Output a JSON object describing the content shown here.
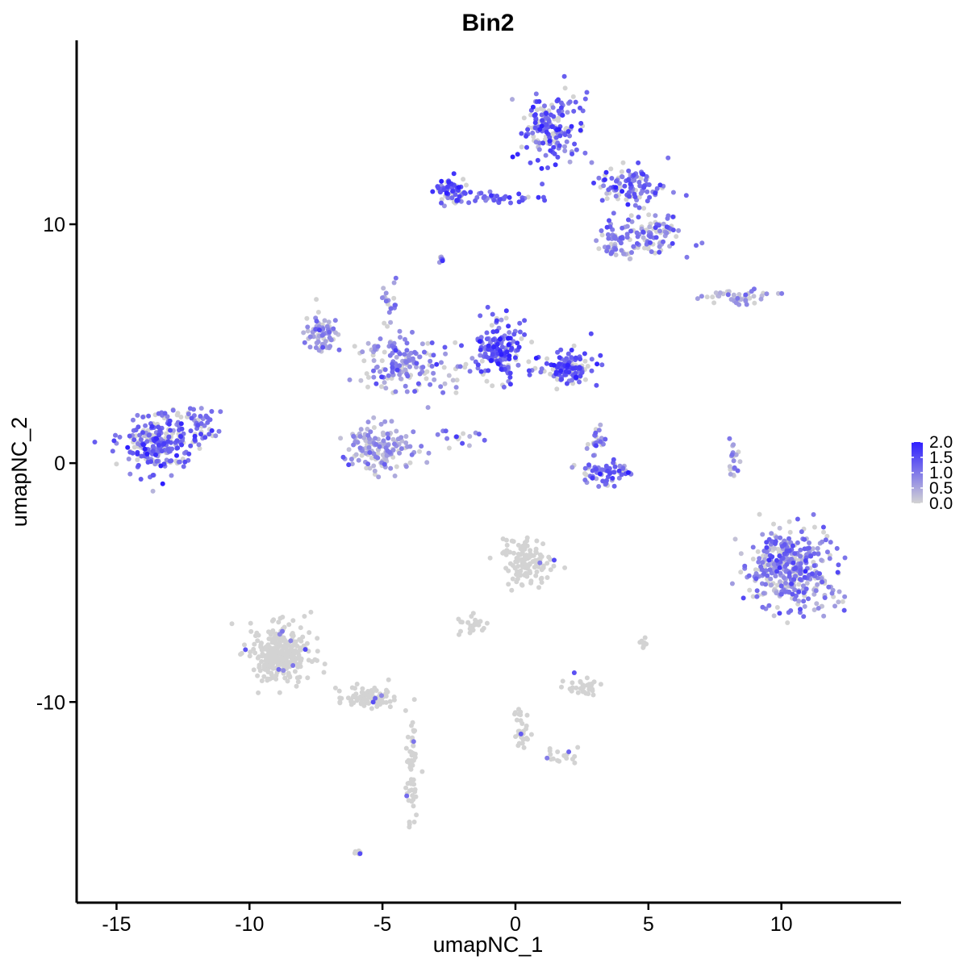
{
  "chart_data": {
    "type": "scatter",
    "title": "Bin2",
    "xlabel": "umapNC_1",
    "ylabel": "umapNC_2",
    "xlim": [
      -16.5,
      14.5
    ],
    "ylim": [
      -18.4,
      17.7
    ],
    "x_ticks": [
      -15,
      -10,
      -5,
      0,
      5,
      10
    ],
    "y_ticks": [
      -10,
      0,
      10
    ],
    "x_tick_labels": [
      "-15",
      "-10",
      "-5",
      "0",
      "5",
      "10"
    ],
    "y_tick_labels": [
      "-10",
      "0",
      "10"
    ],
    "grid": false,
    "color_scale": {
      "low_color": "#d3d3d3",
      "high_color": "#2e1fff",
      "min": 0.0,
      "max": 2.0,
      "tick_values": [
        0.0,
        0.5,
        1.0,
        1.5,
        2.0
      ],
      "tick_labels": [
        "0.0",
        "0.5",
        "1.0",
        "1.5",
        "2.0"
      ],
      "position": "right"
    },
    "clusters": [
      {
        "label": "left-island",
        "center": [
          -13.4,
          0.9
        ],
        "spread": [
          1.2,
          1.2
        ],
        "n": 240,
        "expr_mean": 1.2
      },
      {
        "label": "left-island-tail",
        "center": [
          -11.7,
          1.6
        ],
        "spread": [
          0.6,
          0.7
        ],
        "n": 40,
        "expr_mean": 1.1
      },
      {
        "label": "top-upper-lobe",
        "center": [
          1.3,
          14.0
        ],
        "spread": [
          1.0,
          1.4
        ],
        "n": 170,
        "expr_mean": 1.2
      },
      {
        "label": "top-left-arm",
        "center": [
          -2.4,
          11.4
        ],
        "spread": [
          0.6,
          0.5
        ],
        "n": 70,
        "expr_mean": 1.4
      },
      {
        "label": "top-bridge",
        "center": [
          -0.6,
          11.1
        ],
        "spread": [
          1.2,
          0.2
        ],
        "n": 35,
        "expr_mean": 1.3
      },
      {
        "label": "top-right-arm",
        "center": [
          4.3,
          11.5
        ],
        "spread": [
          1.3,
          0.8
        ],
        "n": 110,
        "expr_mean": 1.1
      },
      {
        "label": "top-lower-right",
        "center": [
          5.2,
          9.6
        ],
        "spread": [
          1.0,
          0.7
        ],
        "n": 90,
        "expr_mean": 1.0
      },
      {
        "label": "top-lower-mid",
        "center": [
          3.8,
          9.2
        ],
        "spread": [
          0.6,
          0.7
        ],
        "n": 50,
        "expr_mean": 0.9
      },
      {
        "label": "top-small-dot",
        "center": [
          -2.8,
          8.5
        ],
        "spread": [
          0.2,
          0.2
        ],
        "n": 8,
        "expr_mean": 1.0
      },
      {
        "label": "mid-central-hub",
        "center": [
          -4.2,
          4.2
        ],
        "spread": [
          1.5,
          1.1
        ],
        "n": 160,
        "expr_mean": 0.9
      },
      {
        "label": "mid-left-lobe",
        "center": [
          -7.3,
          5.4
        ],
        "spread": [
          0.6,
          0.7
        ],
        "n": 70,
        "expr_mean": 0.7
      },
      {
        "label": "mid-upper-spike",
        "center": [
          -4.7,
          6.6
        ],
        "spread": [
          0.3,
          0.9
        ],
        "n": 20,
        "expr_mean": 0.8
      },
      {
        "label": "mid-bottom-blob",
        "center": [
          -5.1,
          0.6
        ],
        "spread": [
          1.2,
          0.9
        ],
        "n": 150,
        "expr_mean": 0.6
      },
      {
        "label": "mid-right-lobe",
        "center": [
          -0.7,
          4.7
        ],
        "spread": [
          0.8,
          1.1
        ],
        "n": 170,
        "expr_mean": 1.3
      },
      {
        "label": "mid-far-right",
        "center": [
          1.9,
          4.0
        ],
        "spread": [
          0.9,
          0.6
        ],
        "n": 130,
        "expr_mean": 1.4
      },
      {
        "label": "mid-spur",
        "center": [
          -2.0,
          1.0
        ],
        "spread": [
          0.9,
          0.4
        ],
        "n": 15,
        "expr_mean": 0.9
      },
      {
        "label": "small-mid-right",
        "center": [
          3.4,
          -0.4
        ],
        "spread": [
          0.9,
          0.5
        ],
        "n": 70,
        "expr_mean": 1.1
      },
      {
        "label": "small-mid-right-top",
        "center": [
          3.1,
          0.9
        ],
        "spread": [
          0.3,
          0.6
        ],
        "n": 25,
        "expr_mean": 1.0
      },
      {
        "label": "right-thin-arc",
        "center": [
          8.4,
          7.0
        ],
        "spread": [
          1.1,
          0.3
        ],
        "n": 45,
        "expr_mean": 0.6
      },
      {
        "label": "right-small-vertical",
        "center": [
          8.2,
          0.2
        ],
        "spread": [
          0.2,
          1.0
        ],
        "n": 20,
        "expr_mean": 0.6
      },
      {
        "label": "right-large-blob",
        "center": [
          10.4,
          -4.5
        ],
        "spread": [
          1.5,
          1.5
        ],
        "n": 400,
        "expr_mean": 0.9
      },
      {
        "label": "gray-big-lower-left",
        "center": [
          -8.8,
          -8.0
        ],
        "spread": [
          1.0,
          1.1
        ],
        "n": 280,
        "expr_mean": 0.02
      },
      {
        "label": "gray-lower-left-tail",
        "center": [
          -5.5,
          -9.8
        ],
        "spread": [
          1.1,
          0.4
        ],
        "n": 90,
        "expr_mean": 0.02
      },
      {
        "label": "gray-lower-left-stem",
        "center": [
          -3.9,
          -13.0
        ],
        "spread": [
          0.2,
          1.9
        ],
        "n": 55,
        "expr_mean": 0.03
      },
      {
        "label": "gray-lower-left-dot",
        "center": [
          -5.9,
          -16.3
        ],
        "spread": [
          0.2,
          0.1
        ],
        "n": 8,
        "expr_mean": 0.0
      },
      {
        "label": "gray-central-lower",
        "center": [
          0.4,
          -4.1
        ],
        "spread": [
          0.8,
          0.9
        ],
        "n": 120,
        "expr_mean": 0.04
      },
      {
        "label": "gray-central-lower-arm",
        "center": [
          -1.6,
          -6.8
        ],
        "spread": [
          0.6,
          0.4
        ],
        "n": 25,
        "expr_mean": 0.1
      },
      {
        "label": "gray-center-streak",
        "center": [
          0.3,
          -11.2
        ],
        "spread": [
          0.3,
          0.9
        ],
        "n": 30,
        "expr_mean": 0.04
      },
      {
        "label": "gray-center-streak-branch",
        "center": [
          1.7,
          -12.3
        ],
        "spread": [
          0.8,
          0.3
        ],
        "n": 18,
        "expr_mean": 0.04
      },
      {
        "label": "gray-center-right",
        "center": [
          2.4,
          -9.4
        ],
        "spread": [
          0.6,
          0.3
        ],
        "n": 35,
        "expr_mean": 0.05
      },
      {
        "label": "gray-small-dots",
        "center": [
          4.8,
          -7.5
        ],
        "spread": [
          0.2,
          0.2
        ],
        "n": 10,
        "expr_mean": 0.1
      }
    ]
  }
}
